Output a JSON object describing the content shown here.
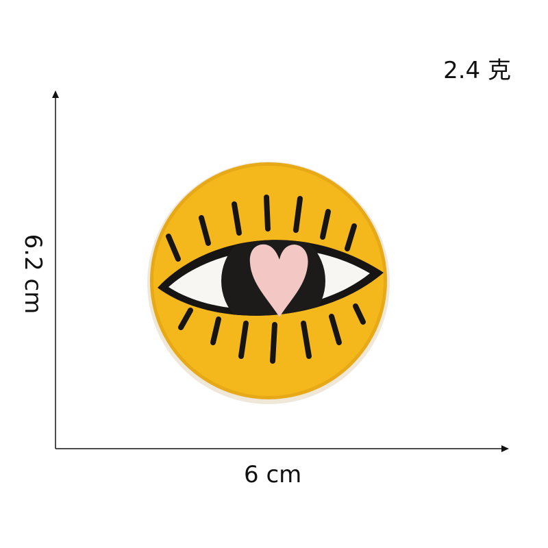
{
  "labels": {
    "weight": "2.4 克",
    "width": "6 cm",
    "height": "6.2 cm"
  },
  "patch": {
    "subject": "eye-with-heart",
    "colors": {
      "background": "#f4b81c",
      "outline": "#171414",
      "eye_white": "#f8f6f2",
      "iris": "#1d1a1a",
      "heart": "#f3c7c4"
    }
  }
}
